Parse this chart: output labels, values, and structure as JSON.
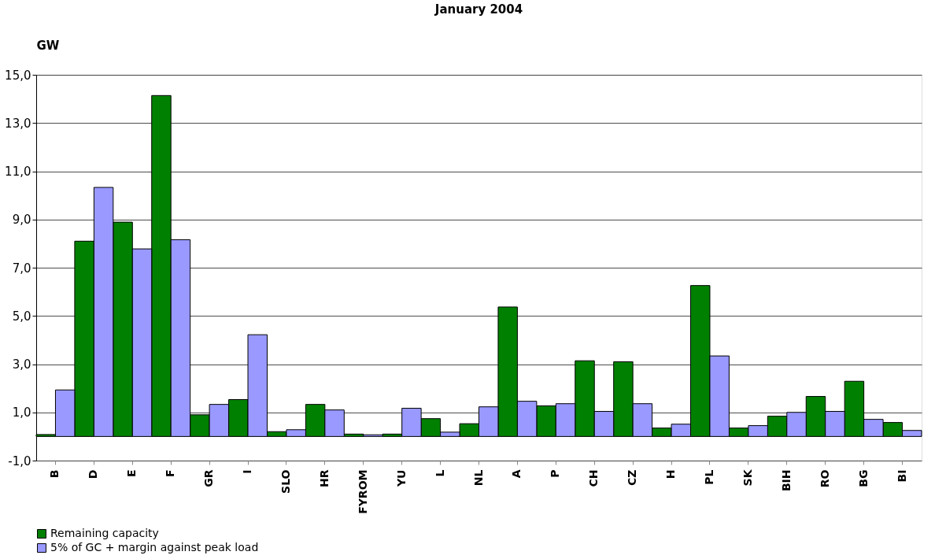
{
  "chart_data": {
    "type": "bar",
    "title": "January 2004",
    "ylabel": "GW",
    "categories": [
      "B",
      "D",
      "E",
      "F",
      "GR",
      "I",
      "SLO",
      "HR",
      "FYROM",
      "YU",
      "L",
      "NL",
      "A",
      "P",
      "CH",
      "CZ",
      "H",
      "PL",
      "SK",
      "BIH",
      "RO",
      "BG",
      "BI"
    ],
    "series": [
      {
        "name": "Remaining capacity",
        "color": "#008000",
        "values": [
          0.08,
          8.1,
          8.89,
          14.14,
          0.9,
          1.53,
          0.2,
          1.33,
          0.1,
          0.1,
          0.74,
          0.53,
          5.37,
          1.27,
          3.14,
          3.1,
          0.35,
          6.26,
          0.35,
          0.84,
          1.66,
          2.29,
          0.58
        ]
      },
      {
        "name": "5% of GC + margin against peak load",
        "color": "#9999ff",
        "values": [
          1.93,
          10.33,
          7.78,
          8.16,
          1.33,
          4.22,
          0.28,
          1.1,
          0.07,
          1.17,
          0.18,
          1.23,
          1.46,
          1.36,
          1.04,
          1.36,
          0.51,
          3.34,
          0.45,
          1.0,
          1.04,
          0.71,
          0.25
        ]
      }
    ],
    "ylim": [
      -1,
      15
    ],
    "yticks": [
      {
        "value": -1,
        "label": "-1,0"
      },
      {
        "value": 1,
        "label": "1,0"
      },
      {
        "value": 3,
        "label": "3,0"
      },
      {
        "value": 5,
        "label": "5,0"
      },
      {
        "value": 7,
        "label": "7,0"
      },
      {
        "value": 9,
        "label": "9,0"
      },
      {
        "value": 11,
        "label": "11,0"
      },
      {
        "value": 13,
        "label": "13,0"
      },
      {
        "value": 15,
        "label": "15,0"
      }
    ],
    "grid": "y",
    "legend": "bottom"
  }
}
